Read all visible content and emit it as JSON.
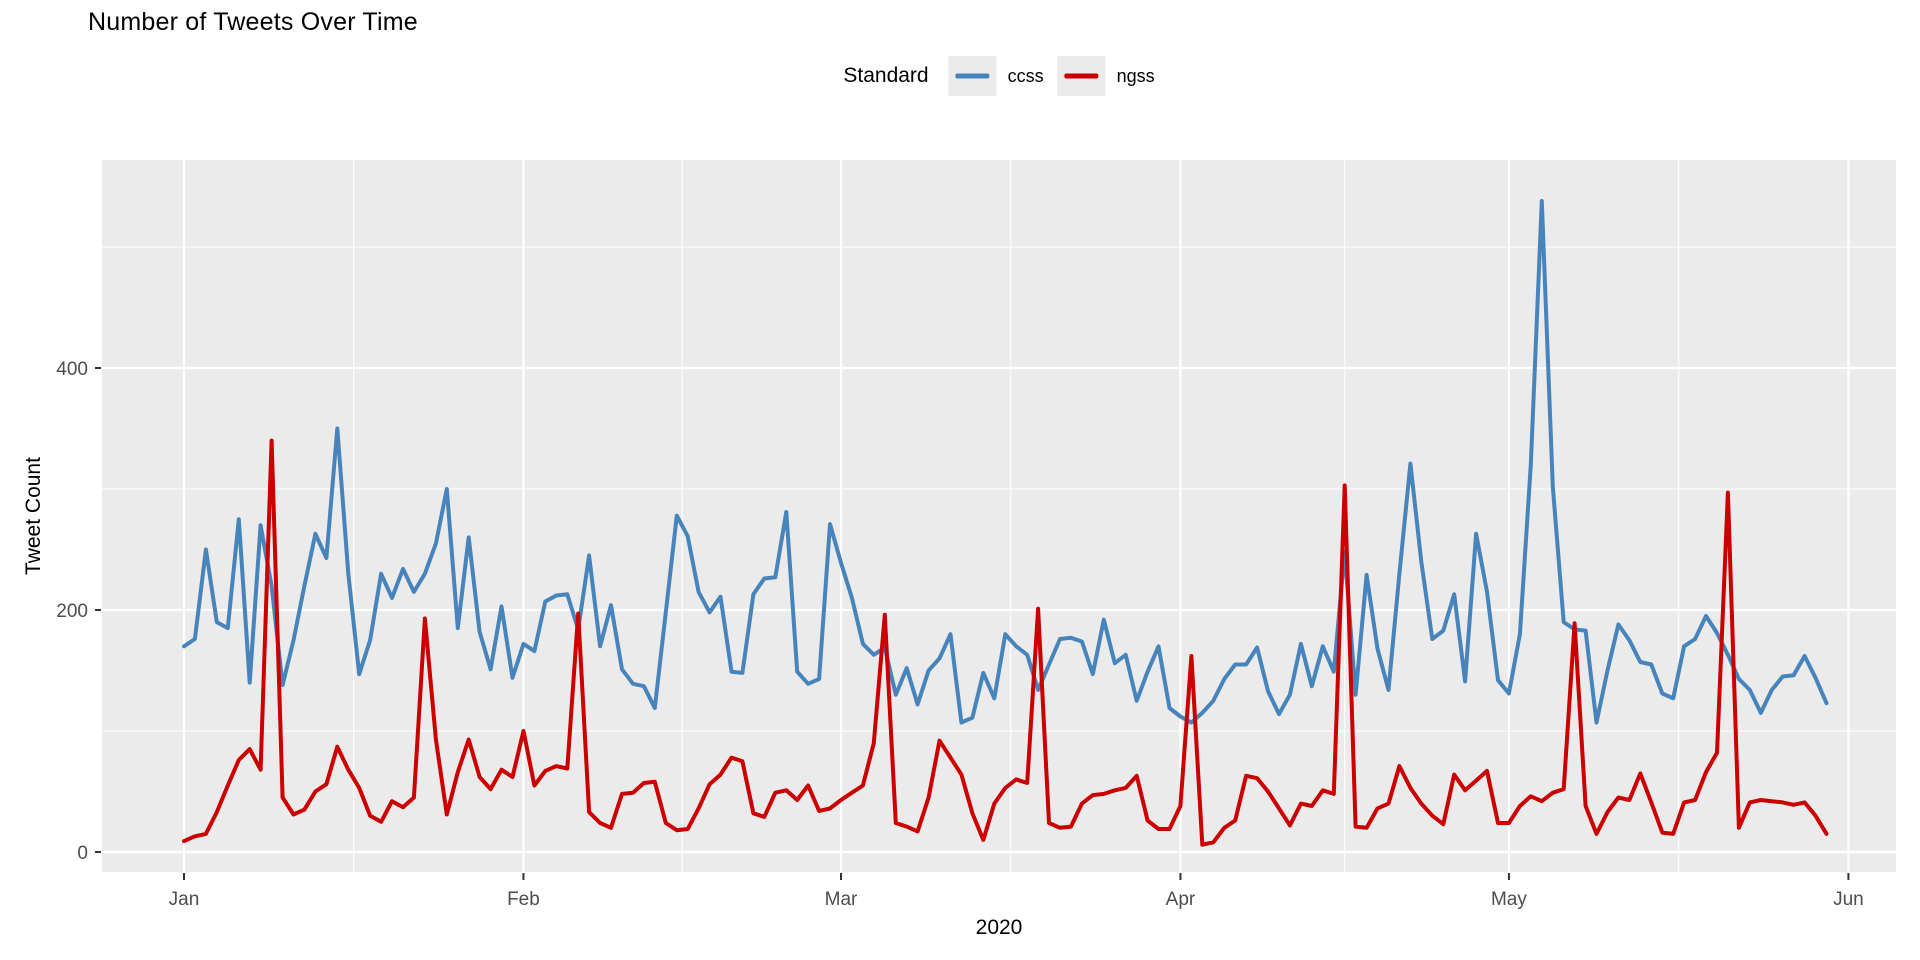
{
  "title": "Number of Tweets Over Time",
  "legend": {
    "title": "Standard",
    "items": [
      {
        "label": "ccss",
        "color": "#4884BC"
      },
      {
        "label": "ngss",
        "color": "#CC0000"
      }
    ]
  },
  "y_axis": {
    "label": "Tweet Count"
  },
  "x_axis": {
    "label": "2020"
  },
  "colors": {
    "panel_background": "#EBEBEB",
    "gridline": "#FFFFFF",
    "tick_text": "#4D4D4D",
    "tick_mark": "#333333",
    "ccss": "#4884BC",
    "ngss": "#CC0000"
  },
  "chart_data": {
    "type": "line",
    "title": "Number of Tweets Over Time",
    "xlabel": "2020",
    "ylabel": "Tweet Count",
    "legend_title": "Standard",
    "legend_position": "top-center",
    "grid": true,
    "ylim": [
      -20,
      565
    ],
    "y_major_ticks": [
      0,
      200,
      400
    ],
    "y_minor_ticks": [
      100,
      300,
      500
    ],
    "x_tick_labels": [
      "Jan",
      "Feb",
      "Mar",
      "Apr",
      "May",
      "Jun"
    ],
    "x_start_date": "2020-01-01",
    "months": [
      {
        "label": "Jan",
        "days": 31
      },
      {
        "label": "Feb",
        "days": 29
      },
      {
        "label": "Mar",
        "days": 31
      },
      {
        "label": "Apr",
        "days": 30
      },
      {
        "label": "May",
        "days": 31
      },
      {
        "label": "Jun",
        "days": 0
      }
    ],
    "series": [
      {
        "name": "ccss",
        "color": "#4884BC",
        "values": [
          170,
          176,
          250,
          190,
          185,
          275,
          140,
          270,
          220,
          138,
          175,
          220,
          263,
          243,
          350,
          230,
          147,
          175,
          230,
          210,
          234,
          215,
          230,
          255,
          300,
          185,
          260,
          182,
          151,
          203,
          144,
          172,
          166,
          207,
          212,
          213,
          184,
          245,
          170,
          204,
          151,
          139,
          137,
          119,
          198,
          278,
          261,
          215,
          198,
          211,
          149,
          148,
          213,
          226,
          227,
          281,
          149,
          139,
          143,
          271,
          239,
          210,
          172,
          163,
          169,
          130,
          152,
          122,
          150,
          160,
          180,
          107,
          111,
          148,
          127,
          180,
          170,
          163,
          134,
          155,
          176,
          177,
          174,
          147,
          192,
          156,
          163,
          125,
          149,
          170,
          119,
          112,
          107,
          115,
          125,
          143,
          155,
          155,
          169,
          133,
          114,
          130,
          172,
          137,
          170,
          149,
          248,
          130,
          229,
          168,
          134,
          230,
          321,
          240,
          176,
          183,
          213,
          141,
          263,
          215,
          142,
          131,
          180,
          320,
          538,
          302,
          190,
          184,
          183,
          107,
          150,
          188,
          175,
          157,
          155,
          131,
          127,
          170,
          176,
          195,
          181,
          163,
          143,
          134,
          115,
          134,
          145,
          146,
          162,
          144,
          123
        ]
      },
      {
        "name": "ngss",
        "color": "#CC0000",
        "values": [
          9,
          13,
          15,
          33,
          55,
          76,
          85,
          68,
          340,
          45,
          31,
          35,
          50,
          56,
          87,
          68,
          53,
          30,
          25,
          42,
          37,
          45,
          193,
          93,
          31,
          66,
          93,
          62,
          52,
          68,
          62,
          100,
          55,
          67,
          71,
          69,
          197,
          33,
          24,
          20,
          48,
          49,
          57,
          58,
          24,
          18,
          19,
          36,
          56,
          64,
          78,
          75,
          32,
          29,
          49,
          51,
          43,
          55,
          34,
          36,
          43,
          49,
          55,
          90,
          196,
          24,
          21,
          17,
          45,
          92,
          78,
          64,
          32,
          10,
          40,
          53,
          60,
          57,
          201,
          24,
          20,
          21,
          40,
          47,
          48,
          51,
          53,
          63,
          26,
          19,
          19,
          38,
          162,
          6,
          8,
          20,
          26,
          63,
          61,
          50,
          36,
          22,
          40,
          38,
          51,
          48,
          303,
          21,
          20,
          36,
          40,
          71,
          53,
          40,
          30,
          23,
          64,
          51,
          59,
          67,
          24,
          24,
          38,
          46,
          42,
          49,
          52,
          189,
          38,
          15,
          33,
          45,
          43,
          65,
          41,
          16,
          15,
          41,
          43,
          66,
          82,
          297,
          20,
          41,
          43,
          42,
          41,
          39,
          41,
          30,
          15
        ]
      }
    ]
  }
}
